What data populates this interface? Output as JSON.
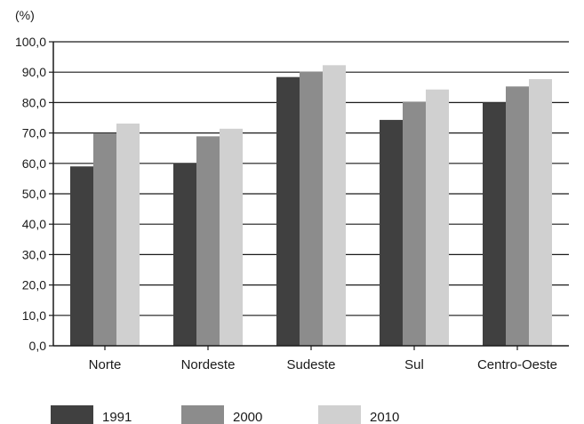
{
  "chart_data": {
    "type": "bar",
    "unit_label": "(%)",
    "categories": [
      "Norte",
      "Nordeste",
      "Sudeste",
      "Sul",
      "Centro-Oeste"
    ],
    "series": [
      {
        "name": "1991",
        "color": "#404040",
        "values": [
          59.0,
          60.1,
          88.4,
          74.3,
          80.0
        ]
      },
      {
        "name": "2000",
        "color": "#8c8c8c",
        "values": [
          69.9,
          68.9,
          90.2,
          80.3,
          85.3
        ]
      },
      {
        "name": "2010",
        "color": "#d0d0d0",
        "values": [
          73.1,
          71.4,
          92.3,
          84.3,
          87.7
        ]
      }
    ],
    "ylim": [
      0,
      100
    ],
    "yticks": [
      "0,0",
      "10,0",
      "20,0",
      "30,0",
      "40,0",
      "50,0",
      "60,0",
      "70,0",
      "80,0",
      "90,0",
      "100,0"
    ],
    "grid": true,
    "legend_position": "bottom"
  }
}
